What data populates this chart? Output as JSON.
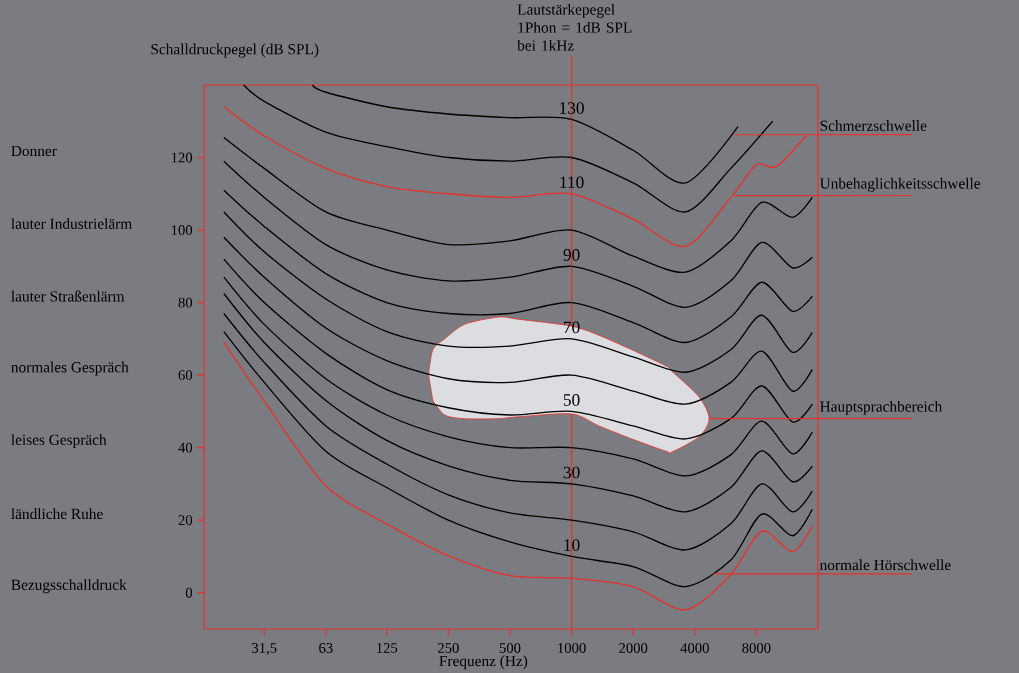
{
  "chart_data": {
    "type": "line",
    "title": "Lautstärkepegel",
    "subtitle": "1Phon = 1dB SPL bei 1kHz",
    "xlabel": "Frequenz (Hz)",
    "ylabel": "Schalldruckpegel (dB SPL)",
    "log": "x",
    "xlim": [
      16,
      16000
    ],
    "ylim": [
      -10,
      140
    ],
    "xticks": [
      {
        "value": 31.5,
        "label": "31,5"
      },
      63,
      125,
      250,
      500,
      1000,
      2000,
      4000,
      8000
    ],
    "yticks": [
      0,
      20,
      40,
      60,
      80,
      100,
      120
    ],
    "grid": false,
    "marker": "none",
    "line_style": "solid",
    "ref_lines": [
      {
        "axis": "x",
        "value": 1000,
        "color": "#e8302a"
      }
    ],
    "series": [
      {
        "type": "area",
        "color": "#dcdde0",
        "x": [
          200,
          210,
          240,
          300,
          440,
          550,
          1000,
          1360,
          1970,
          2900,
          3100,
          4200,
          4700,
          4200,
          3100,
          2900,
          1970,
          1360,
          1000,
          550,
          440,
          300,
          240,
          210
        ],
        "values": [
          60,
          67,
          70,
          74,
          76,
          75.4,
          73.5,
          71,
          67,
          62.5,
          61,
          54,
          48,
          43,
          38.8,
          39,
          42.4,
          46,
          49.3,
          48.5,
          48,
          48,
          49,
          53
        ]
      },
      {
        "color": "#e8302a",
        "x": [
          20,
          31.5,
          63,
          125,
          250,
          500,
          1000,
          2000,
          3600,
          6000,
          8500,
          12000,
          15000
        ],
        "values": [
          69,
          52.8,
          29.5,
          19,
          10.2,
          4.7,
          4,
          1.7,
          -4.7,
          5,
          17,
          11.3,
          18.4
        ]
      },
      {
        "name": "10",
        "color": "#000000",
        "x": [
          20,
          31.5,
          63,
          125,
          250,
          500,
          1000,
          2000,
          3600,
          6000,
          8500,
          12000,
          15000
        ],
        "values": [
          72,
          58,
          39,
          29,
          20,
          14,
          10,
          7.2,
          1.7,
          9,
          21.7,
          15.7,
          23
        ]
      },
      {
        "color": "#000000",
        "x": [
          20,
          31.5,
          63,
          125,
          250,
          500,
          1000,
          2000,
          3600,
          6000,
          8500,
          12000,
          15000
        ],
        "values": [
          77,
          63.5,
          46,
          35.5,
          27,
          22,
          20,
          16.8,
          11.8,
          19,
          30,
          22.3,
          28
        ]
      },
      {
        "name": "30",
        "color": "#000000",
        "x": [
          20,
          31.5,
          63,
          125,
          250,
          500,
          1000,
          2000,
          3600,
          6000,
          8500,
          12000,
          15000
        ],
        "values": [
          82.5,
          69,
          53,
          42,
          35,
          31,
          30,
          26.7,
          22.3,
          29,
          39.1,
          30.6,
          34.9
        ]
      },
      {
        "color": "#000000",
        "x": [
          20,
          31.5,
          63,
          125,
          250,
          500,
          1000,
          2000,
          3600,
          6000,
          8500,
          12000,
          15000
        ],
        "values": [
          87,
          74,
          59,
          49,
          43,
          40,
          40,
          36.9,
          32.2,
          38,
          47.3,
          38.3,
          44.3
        ]
      },
      {
        "name": "50",
        "color": "#000000",
        "x": [
          20,
          31.5,
          63,
          125,
          250,
          500,
          1000,
          2000,
          3600,
          6000,
          8500,
          12000,
          15000
        ],
        "values": [
          92,
          80,
          66,
          56,
          51,
          49,
          50,
          46,
          42.4,
          48,
          57,
          47.1,
          52
        ]
      },
      {
        "color": "#000000",
        "x": [
          20,
          31.5,
          63,
          125,
          250,
          500,
          1000,
          2000,
          3600,
          6000,
          8500,
          12000,
          15000
        ],
        "values": [
          98,
          87,
          73,
          64,
          59,
          58,
          60,
          55.6,
          52,
          58,
          66.6,
          55.6,
          61.6
        ]
      },
      {
        "name": "70",
        "color": "#000000",
        "x": [
          20,
          31.5,
          63,
          125,
          250,
          500,
          1000,
          2000,
          3600,
          6000,
          8500,
          12000,
          15000
        ],
        "values": [
          105,
          94,
          81,
          72,
          68,
          68,
          70,
          65,
          60.8,
          67,
          76.5,
          66.3,
          71.8
        ]
      },
      {
        "color": "#000000",
        "x": [
          20,
          31.5,
          63,
          125,
          250,
          500,
          1000,
          2000,
          3600,
          6000,
          8500,
          12000,
          15000
        ],
        "values": [
          111,
          101,
          88,
          80,
          77,
          77,
          80,
          74.5,
          69,
          76,
          85.6,
          77.6,
          81.8
        ]
      },
      {
        "name": "90",
        "color": "#000000",
        "x": [
          20,
          31.5,
          63,
          125,
          250,
          500,
          1000,
          2000,
          3600,
          6000,
          8500,
          12000,
          15000
        ],
        "values": [
          119,
          109,
          96,
          89,
          86,
          87,
          90,
          84.5,
          78.7,
          86,
          96.6,
          89.6,
          92.5
        ]
      },
      {
        "color": "#000000",
        "x": [
          20,
          31.5,
          63,
          125,
          250,
          500,
          1000,
          2000,
          3600,
          6000,
          8500,
          12000,
          15000
        ],
        "values": [
          125.5,
          117,
          105,
          100,
          96,
          97,
          100,
          92.8,
          88.4,
          97,
          107.6,
          103.5,
          109
        ]
      },
      {
        "name": "110",
        "color": "#e8302a",
        "x": [
          20,
          31.5,
          63,
          125,
          250,
          500,
          1000,
          2000,
          3600,
          6000,
          8000,
          10000,
          14000
        ],
        "values": [
          134,
          126,
          117,
          112,
          110,
          109,
          110,
          103,
          95.5,
          109,
          118,
          117.5,
          126
        ]
      },
      {
        "color": "#000000",
        "x": [
          25,
          31.5,
          63,
          125,
          250,
          500,
          1000,
          2000,
          3600,
          6000,
          9600
        ],
        "values": [
          140,
          135.5,
          127,
          123,
          120,
          119,
          120,
          113,
          105,
          117,
          130
        ]
      },
      {
        "name": "130",
        "color": "#000000",
        "x": [
          54,
          63,
          125,
          250,
          500,
          1000,
          2000,
          3600,
          6500
        ],
        "values": [
          140,
          138,
          134,
          132,
          131,
          130.5,
          122,
          113,
          128.5
        ]
      }
    ],
    "annotations": [
      "Donner",
      "lauter Industrielärm",
      "lauter Straßenlärm",
      "normales Gespräch",
      "leises Gespräch",
      "ländliche Ruhe",
      "Bezugsschalldruck",
      {
        "text": "Schmerzschwelle",
        "x": 6250,
        "y": 126.3
      },
      {
        "text": "Unbehaglichkeitsschwelle",
        "x": 6250,
        "y": 109.5
      },
      {
        "text": "Hauptsprachbereich",
        "x": 4700,
        "y": 48
      },
      {
        "text": "normale Hörschwelle",
        "x": 4930,
        "y": 5.2
      }
    ]
  }
}
